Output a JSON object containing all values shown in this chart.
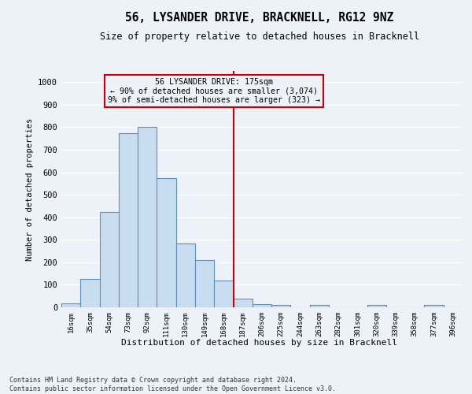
{
  "title": "56, LYSANDER DRIVE, BRACKNELL, RG12 9NZ",
  "subtitle": "Size of property relative to detached houses in Bracknell",
  "xlabel": "Distribution of detached houses by size in Bracknell",
  "ylabel": "Number of detached properties",
  "categories": [
    "16sqm",
    "35sqm",
    "54sqm",
    "73sqm",
    "92sqm",
    "111sqm",
    "130sqm",
    "149sqm",
    "168sqm",
    "187sqm",
    "206sqm",
    "225sqm",
    "244sqm",
    "263sqm",
    "282sqm",
    "301sqm",
    "320sqm",
    "339sqm",
    "358sqm",
    "377sqm",
    "396sqm"
  ],
  "values": [
    18,
    125,
    425,
    775,
    800,
    575,
    285,
    210,
    120,
    40,
    15,
    10,
    0,
    10,
    0,
    0,
    10,
    0,
    0,
    10,
    0
  ],
  "bar_color": "#c9ddf0",
  "bar_edge_color": "#5a8fc0",
  "vline_index": 8.5,
  "vline_color": "#cc0000",
  "annotation_text": "56 LYSANDER DRIVE: 175sqm\n← 90% of detached houses are smaller (3,074)\n9% of semi-detached houses are larger (323) →",
  "annotation_box_edgecolor": "#cc0000",
  "ylim": [
    0,
    1050
  ],
  "yticks": [
    0,
    100,
    200,
    300,
    400,
    500,
    600,
    700,
    800,
    900,
    1000
  ],
  "footer_line1": "Contains HM Land Registry data © Crown copyright and database right 2024.",
  "footer_line2": "Contains public sector information licensed under the Open Government Licence v3.0.",
  "bg_color": "#edf2f9",
  "grid_color": "#ffffff"
}
